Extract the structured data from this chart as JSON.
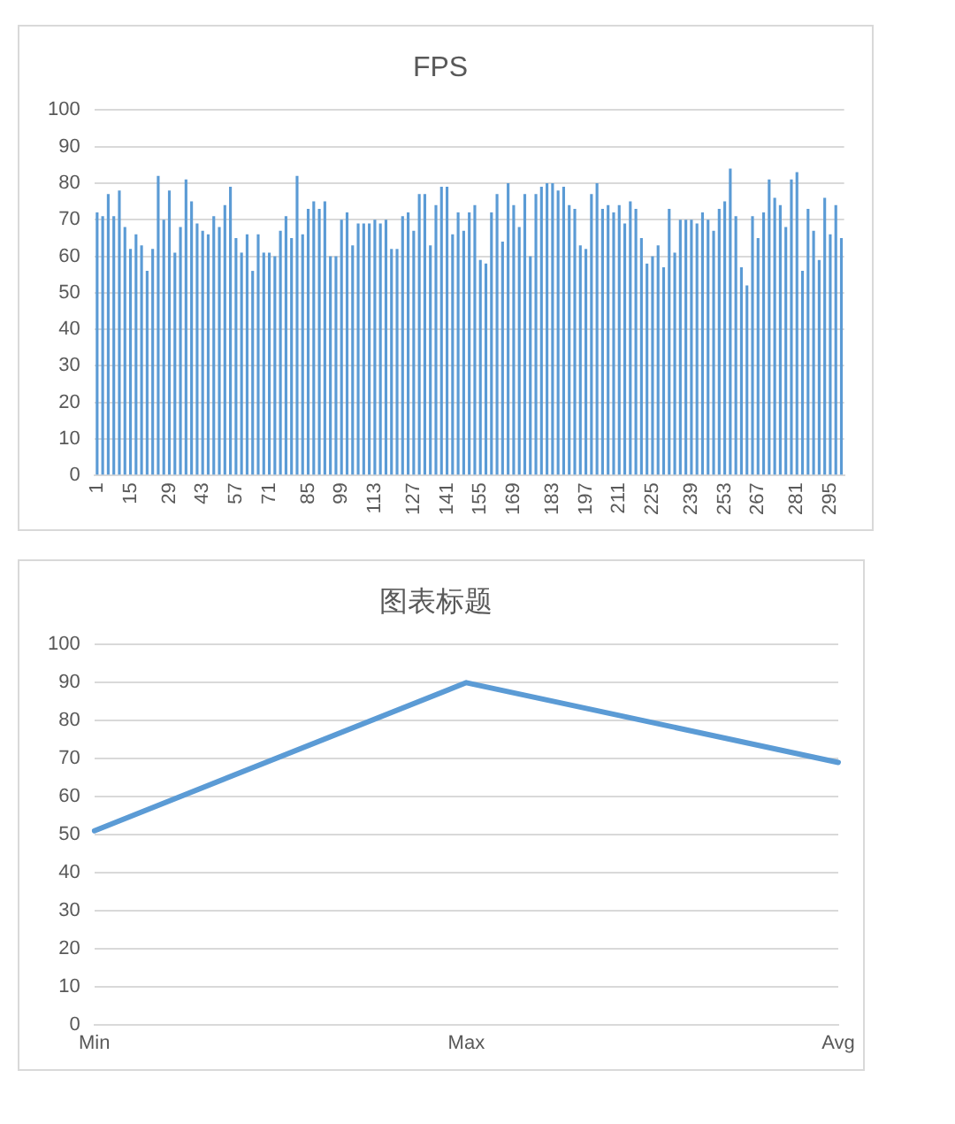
{
  "chart_data": [
    {
      "type": "bar",
      "title": "FPS",
      "color": "#5b9bd5",
      "ylim": [
        0,
        100
      ],
      "yticks": [
        0,
        10,
        20,
        30,
        40,
        50,
        60,
        70,
        80,
        90,
        100
      ],
      "grid": "y",
      "legend": false,
      "categories": [
        "1",
        null,
        null,
        null,
        null,
        null,
        "15",
        null,
        null,
        null,
        null,
        null,
        null,
        "29",
        null,
        null,
        null,
        null,
        null,
        "43",
        null,
        null,
        null,
        null,
        null,
        "57",
        null,
        null,
        null,
        null,
        null,
        "71",
        null,
        null,
        null,
        null,
        null,
        null,
        "85",
        null,
        null,
        null,
        null,
        null,
        "99",
        null,
        null,
        null,
        null,
        null,
        "113",
        null,
        null,
        null,
        null,
        null,
        null,
        "127",
        null,
        null,
        null,
        null,
        null,
        "141",
        null,
        null,
        null,
        null,
        null,
        "155",
        null,
        null,
        null,
        null,
        null,
        "169",
        null,
        null,
        null,
        null,
        null,
        null,
        "183",
        null,
        null,
        null,
        null,
        null,
        "197",
        null,
        null,
        null,
        null,
        null,
        "211",
        null,
        null,
        null,
        null,
        null,
        "225",
        null,
        null,
        null,
        null,
        null,
        null,
        "239",
        null,
        null,
        null,
        null,
        null,
        "253",
        null,
        null,
        null,
        null,
        null,
        "267",
        null,
        null,
        null,
        null,
        null,
        null,
        "281",
        null,
        null,
        null,
        null,
        null,
        "295",
        null,
        null
      ],
      "values": [
        72,
        71,
        77,
        71,
        78,
        68,
        62,
        66,
        63,
        56,
        62,
        82,
        70,
        78,
        61,
        68,
        81,
        75,
        69,
        67,
        66,
        71,
        68,
        74,
        79,
        65,
        61,
        66,
        56,
        66,
        61,
        61,
        60,
        67,
        71,
        65,
        82,
        66,
        73,
        75,
        73,
        75,
        60,
        60,
        70,
        72,
        63,
        69,
        69,
        69,
        70,
        69,
        70,
        62,
        62,
        71,
        72,
        67,
        77,
        77,
        63,
        74,
        79,
        79,
        66,
        72,
        67,
        72,
        74,
        59,
        58,
        72,
        77,
        64,
        80,
        74,
        68,
        77,
        60,
        77,
        79,
        80,
        80,
        78,
        79,
        74,
        73,
        63,
        62,
        77,
        80,
        73,
        74,
        72,
        74,
        69,
        75,
        73,
        65,
        58,
        60,
        63,
        57,
        73,
        61,
        70,
        70,
        70,
        69,
        72,
        70,
        67,
        73,
        75,
        84,
        71,
        57,
        52,
        71,
        65,
        72,
        81,
        76,
        74,
        68,
        81,
        83,
        56,
        73,
        67,
        59,
        76,
        66,
        74,
        65
      ]
    },
    {
      "type": "line",
      "title": "图表标题",
      "color": "#5b9bd5",
      "ylim": [
        0,
        100
      ],
      "yticks": [
        0,
        10,
        20,
        30,
        40,
        50,
        60,
        70,
        80,
        90,
        100
      ],
      "grid": "y",
      "legend": false,
      "marker": "none",
      "categories": [
        "Min",
        "Max",
        "Avg"
      ],
      "values": [
        51,
        90,
        69
      ]
    }
  ]
}
